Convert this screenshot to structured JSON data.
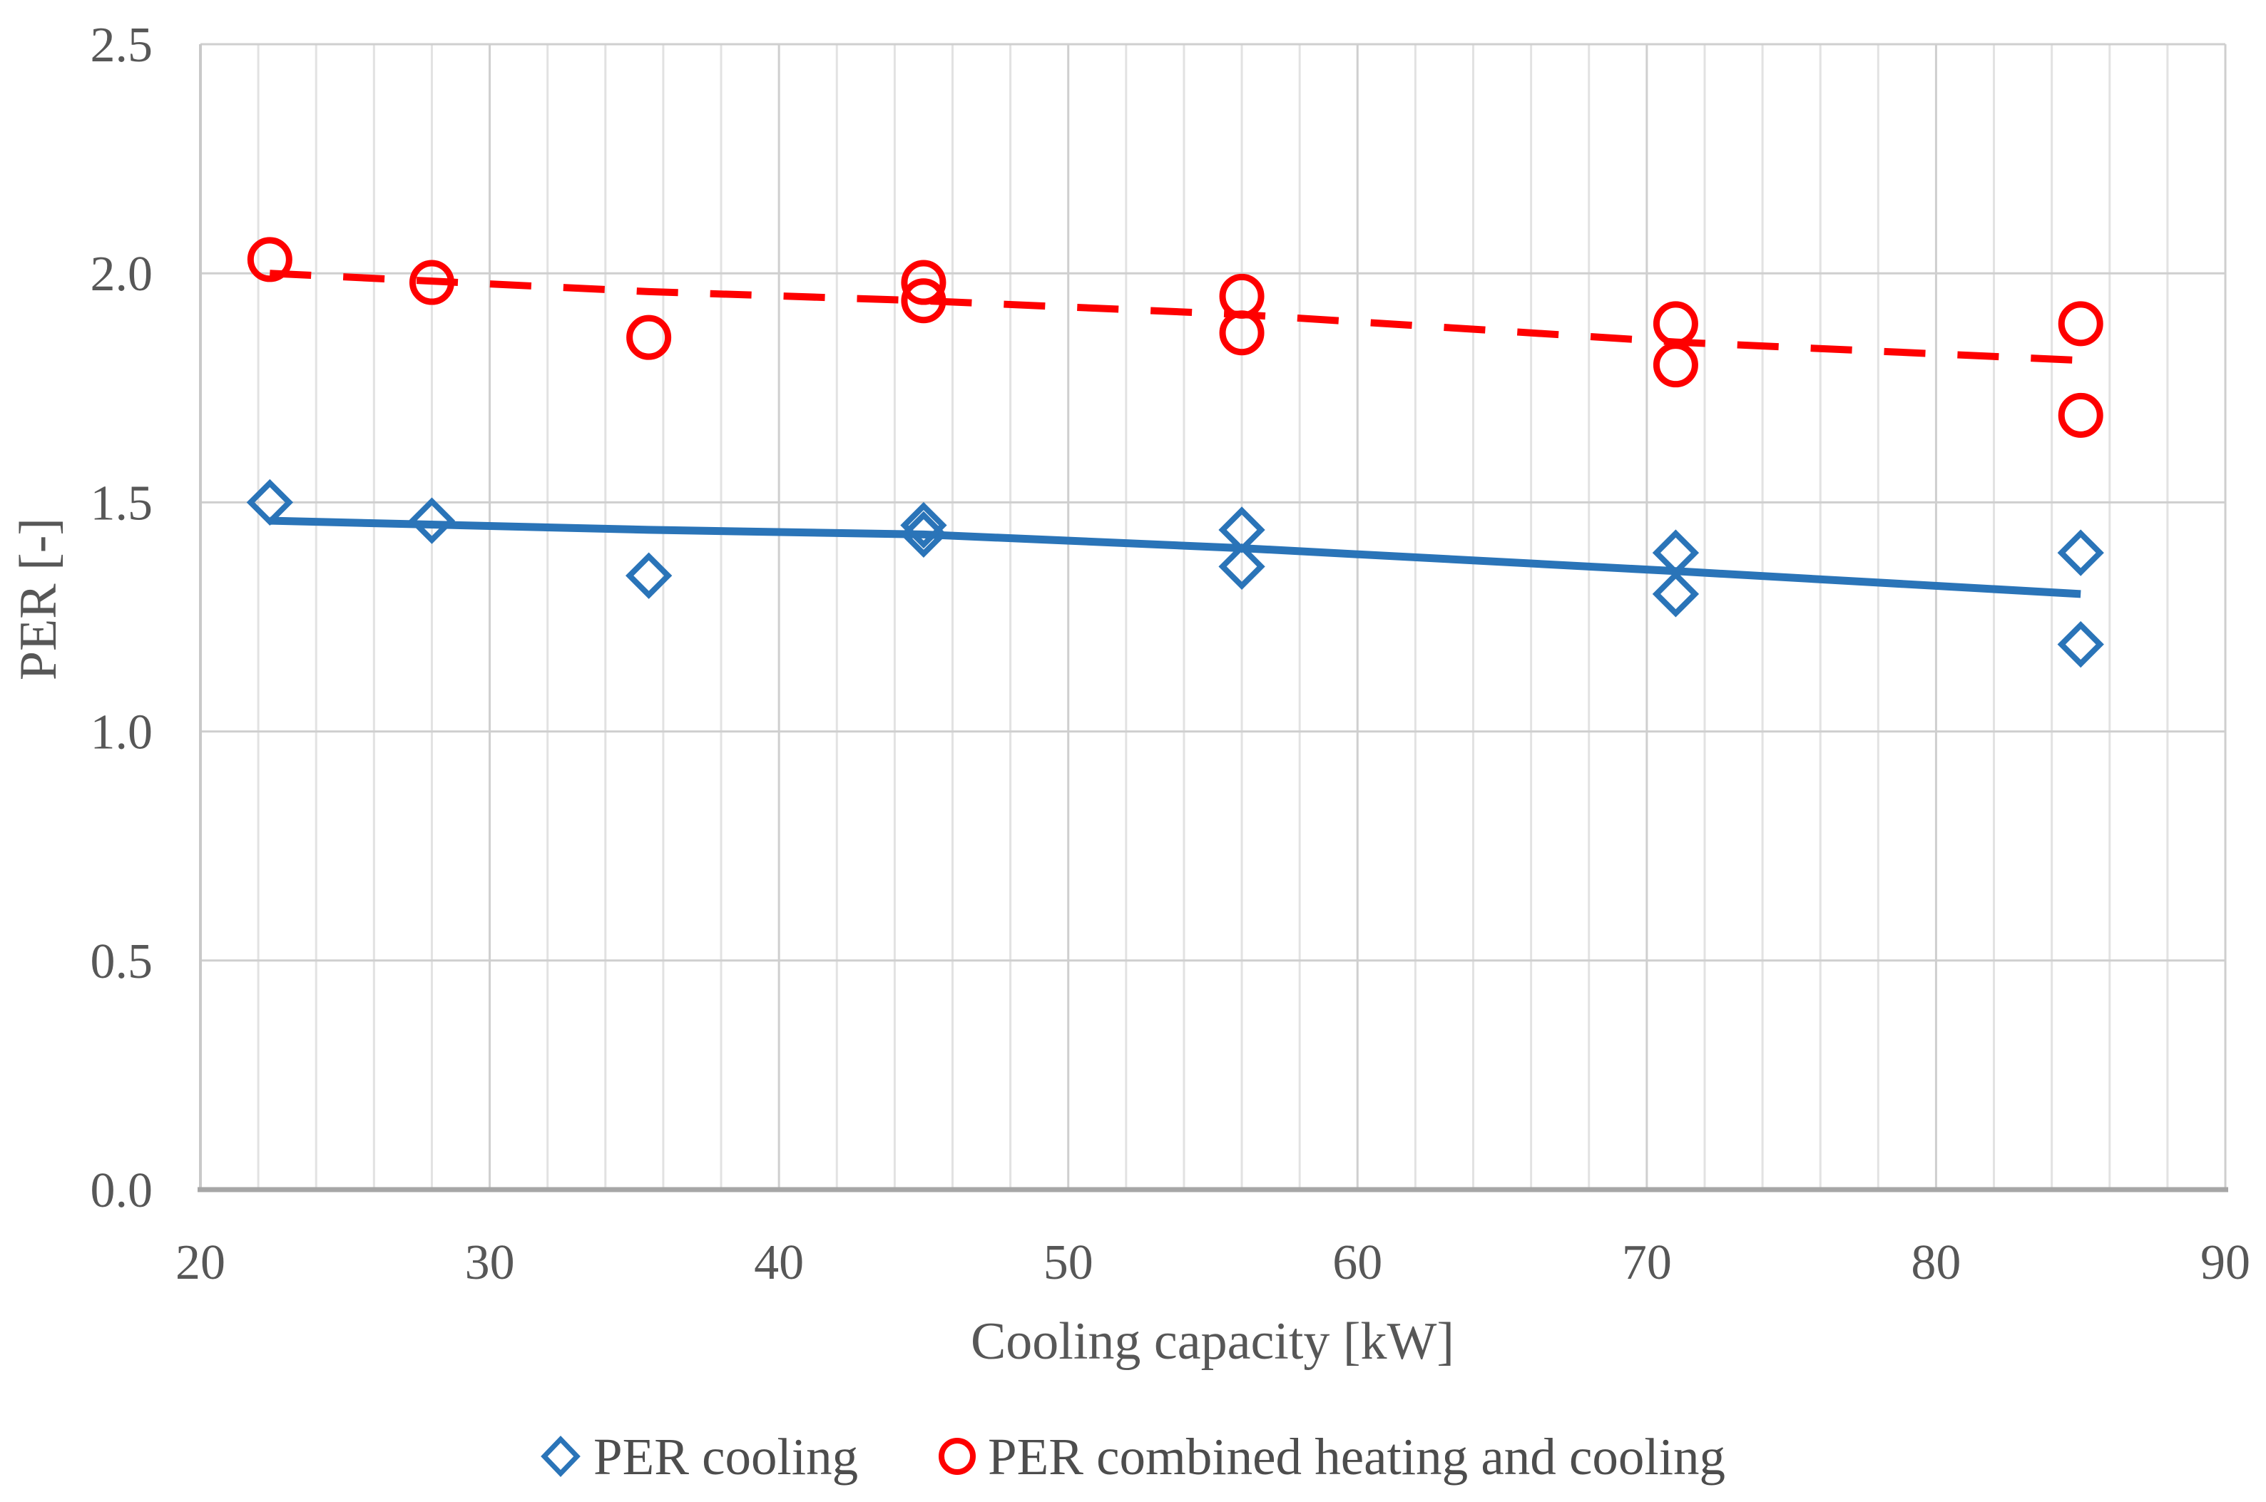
{
  "chart_data": {
    "type": "scatter",
    "title": "",
    "xlabel": "Cooling capacity [kW]",
    "ylabel": "PER [-]",
    "xlim": [
      20,
      90
    ],
    "ylim": [
      0,
      2.5
    ],
    "x_ticks": [
      20,
      30,
      40,
      50,
      60,
      70,
      80,
      90
    ],
    "y_ticks": [
      0.0,
      0.5,
      1.0,
      1.5,
      2.0,
      2.5
    ],
    "x_minor_step": 2,
    "grid": true,
    "legend_position": "bottom-center",
    "series": [
      {
        "name": "PER cooling",
        "marker": "diamond",
        "color": "#2a74b8",
        "trend_style": "solid",
        "points": [
          [
            22.4,
            1.5
          ],
          [
            28,
            1.46
          ],
          [
            35.5,
            1.34
          ],
          [
            45,
            1.45
          ],
          [
            45,
            1.43
          ],
          [
            56,
            1.44
          ],
          [
            56,
            1.36
          ],
          [
            71,
            1.39
          ],
          [
            71,
            1.3
          ],
          [
            85,
            1.39
          ],
          [
            85,
            1.19
          ]
        ],
        "trendline": [
          [
            22.4,
            1.46
          ],
          [
            35.5,
            1.44
          ],
          [
            45,
            1.43
          ],
          [
            56,
            1.4
          ],
          [
            71,
            1.35
          ],
          [
            85,
            1.3
          ]
        ]
      },
      {
        "name": "PER combined heating and cooling",
        "marker": "circle",
        "color": "#fe0000",
        "trend_style": "dashed",
        "points": [
          [
            22.4,
            2.03
          ],
          [
            28,
            1.98
          ],
          [
            35.5,
            1.86
          ],
          [
            45,
            1.98
          ],
          [
            45,
            1.94
          ],
          [
            56,
            1.95
          ],
          [
            56,
            1.87
          ],
          [
            71,
            1.89
          ],
          [
            71,
            1.8
          ],
          [
            85,
            1.89
          ],
          [
            85,
            1.69
          ]
        ],
        "trendline": [
          [
            22.4,
            2.0
          ],
          [
            35.5,
            1.96
          ],
          [
            45,
            1.94
          ],
          [
            56,
            1.91
          ],
          [
            71,
            1.85
          ],
          [
            85,
            1.81
          ]
        ]
      }
    ]
  },
  "colors": {
    "minor_gridline": "#e2e2e2",
    "major_gridline": "#cfcfcf",
    "horizontal_gridline": "#cfcfcf",
    "x_axis_line": "#a6a6a6",
    "y_axis_line": "#c9c9c9",
    "tick_text": "#575757",
    "blue_series": "#2a74b8",
    "red_series": "#fe0000"
  }
}
